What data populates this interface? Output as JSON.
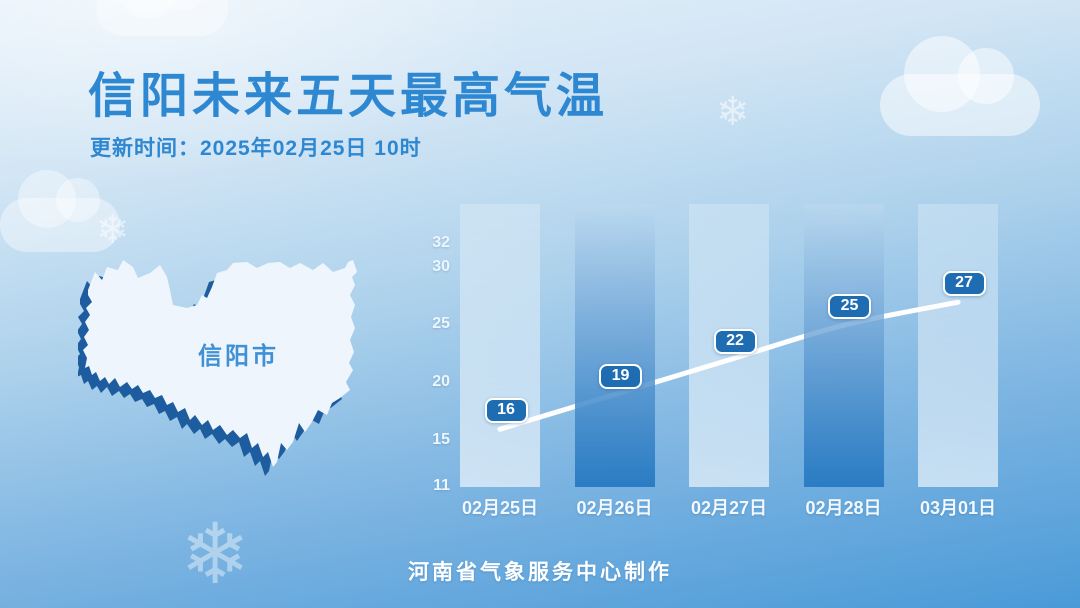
{
  "header": {
    "title": "信阳未来五天最高气温",
    "update_time": "更新时间：2025年02月25日 10时"
  },
  "map": {
    "region_label": "信阳市"
  },
  "footer": {
    "credit": "河南省气象服务中心制作"
  },
  "colors": {
    "title_blue": "#2e87d1",
    "background_top": "#e6f1fa",
    "background_bottom": "#4a9ad8",
    "badge_fill": "#1e6db2",
    "line_white": "#ffffff",
    "map_shadow": "#1d5c9e",
    "map_fill": "#eef5fc"
  },
  "chart_data": {
    "type": "line",
    "title": "信阳未来五天最高气温",
    "categories": [
      "02月25日",
      "02月26日",
      "02月27日",
      "02月28日",
      "03月01日"
    ],
    "series": [
      {
        "name": "最高气温",
        "values": [
          16,
          19,
          22,
          25,
          27
        ]
      }
    ],
    "y_ticks": [
      11,
      15,
      20,
      25,
      30,
      32
    ],
    "ylim": [
      11,
      35.5
    ],
    "grid": false,
    "legend": "none",
    "annotations": "temperature values shown in rounded white-bordered badges above the line"
  }
}
